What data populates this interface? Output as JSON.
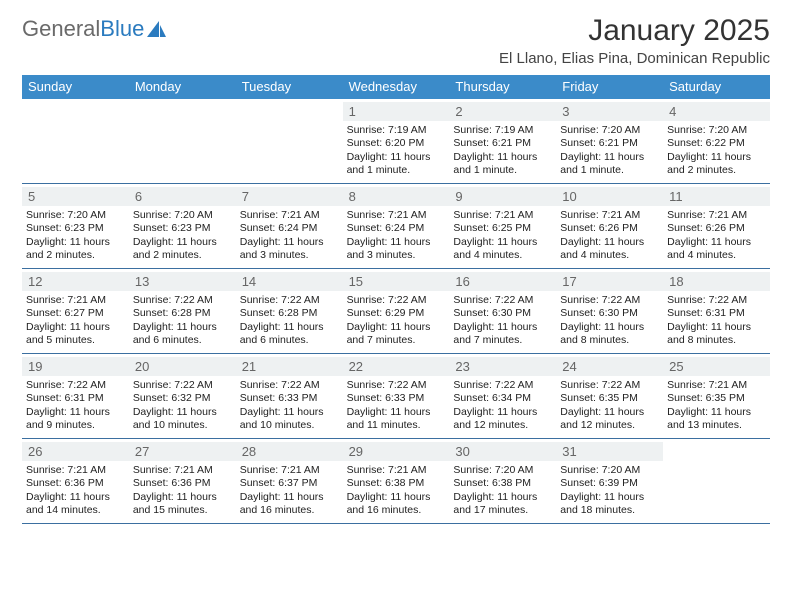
{
  "brand": {
    "part1": "General",
    "part2": "Blue"
  },
  "title": "January 2025",
  "location": "El Llano, Elias Pina, Dominican Republic",
  "colors": {
    "header_bg": "#3b8bc9",
    "header_text": "#ffffff",
    "daynum_bg": "#eef1f2",
    "daynum_text": "#666666",
    "rule": "#3b6fa0",
    "body_text": "#222222",
    "brand_gray": "#6a6a6a",
    "brand_blue": "#2b7bbf"
  },
  "dow": [
    "Sunday",
    "Monday",
    "Tuesday",
    "Wednesday",
    "Thursday",
    "Friday",
    "Saturday"
  ],
  "weeks": [
    [
      null,
      null,
      null,
      {
        "n": "1",
        "sunrise": "7:19 AM",
        "sunset": "6:20 PM",
        "daylight": "11 hours and 1 minute."
      },
      {
        "n": "2",
        "sunrise": "7:19 AM",
        "sunset": "6:21 PM",
        "daylight": "11 hours and 1 minute."
      },
      {
        "n": "3",
        "sunrise": "7:20 AM",
        "sunset": "6:21 PM",
        "daylight": "11 hours and 1 minute."
      },
      {
        "n": "4",
        "sunrise": "7:20 AM",
        "sunset": "6:22 PM",
        "daylight": "11 hours and 2 minutes."
      }
    ],
    [
      {
        "n": "5",
        "sunrise": "7:20 AM",
        "sunset": "6:23 PM",
        "daylight": "11 hours and 2 minutes."
      },
      {
        "n": "6",
        "sunrise": "7:20 AM",
        "sunset": "6:23 PM",
        "daylight": "11 hours and 2 minutes."
      },
      {
        "n": "7",
        "sunrise": "7:21 AM",
        "sunset": "6:24 PM",
        "daylight": "11 hours and 3 minutes."
      },
      {
        "n": "8",
        "sunrise": "7:21 AM",
        "sunset": "6:24 PM",
        "daylight": "11 hours and 3 minutes."
      },
      {
        "n": "9",
        "sunrise": "7:21 AM",
        "sunset": "6:25 PM",
        "daylight": "11 hours and 4 minutes."
      },
      {
        "n": "10",
        "sunrise": "7:21 AM",
        "sunset": "6:26 PM",
        "daylight": "11 hours and 4 minutes."
      },
      {
        "n": "11",
        "sunrise": "7:21 AM",
        "sunset": "6:26 PM",
        "daylight": "11 hours and 4 minutes."
      }
    ],
    [
      {
        "n": "12",
        "sunrise": "7:21 AM",
        "sunset": "6:27 PM",
        "daylight": "11 hours and 5 minutes."
      },
      {
        "n": "13",
        "sunrise": "7:22 AM",
        "sunset": "6:28 PM",
        "daylight": "11 hours and 6 minutes."
      },
      {
        "n": "14",
        "sunrise": "7:22 AM",
        "sunset": "6:28 PM",
        "daylight": "11 hours and 6 minutes."
      },
      {
        "n": "15",
        "sunrise": "7:22 AM",
        "sunset": "6:29 PM",
        "daylight": "11 hours and 7 minutes."
      },
      {
        "n": "16",
        "sunrise": "7:22 AM",
        "sunset": "6:30 PM",
        "daylight": "11 hours and 7 minutes."
      },
      {
        "n": "17",
        "sunrise": "7:22 AM",
        "sunset": "6:30 PM",
        "daylight": "11 hours and 8 minutes."
      },
      {
        "n": "18",
        "sunrise": "7:22 AM",
        "sunset": "6:31 PM",
        "daylight": "11 hours and 8 minutes."
      }
    ],
    [
      {
        "n": "19",
        "sunrise": "7:22 AM",
        "sunset": "6:31 PM",
        "daylight": "11 hours and 9 minutes."
      },
      {
        "n": "20",
        "sunrise": "7:22 AM",
        "sunset": "6:32 PM",
        "daylight": "11 hours and 10 minutes."
      },
      {
        "n": "21",
        "sunrise": "7:22 AM",
        "sunset": "6:33 PM",
        "daylight": "11 hours and 10 minutes."
      },
      {
        "n": "22",
        "sunrise": "7:22 AM",
        "sunset": "6:33 PM",
        "daylight": "11 hours and 11 minutes."
      },
      {
        "n": "23",
        "sunrise": "7:22 AM",
        "sunset": "6:34 PM",
        "daylight": "11 hours and 12 minutes."
      },
      {
        "n": "24",
        "sunrise": "7:22 AM",
        "sunset": "6:35 PM",
        "daylight": "11 hours and 12 minutes."
      },
      {
        "n": "25",
        "sunrise": "7:21 AM",
        "sunset": "6:35 PM",
        "daylight": "11 hours and 13 minutes."
      }
    ],
    [
      {
        "n": "26",
        "sunrise": "7:21 AM",
        "sunset": "6:36 PM",
        "daylight": "11 hours and 14 minutes."
      },
      {
        "n": "27",
        "sunrise": "7:21 AM",
        "sunset": "6:36 PM",
        "daylight": "11 hours and 15 minutes."
      },
      {
        "n": "28",
        "sunrise": "7:21 AM",
        "sunset": "6:37 PM",
        "daylight": "11 hours and 16 minutes."
      },
      {
        "n": "29",
        "sunrise": "7:21 AM",
        "sunset": "6:38 PM",
        "daylight": "11 hours and 16 minutes."
      },
      {
        "n": "30",
        "sunrise": "7:20 AM",
        "sunset": "6:38 PM",
        "daylight": "11 hours and 17 minutes."
      },
      {
        "n": "31",
        "sunrise": "7:20 AM",
        "sunset": "6:39 PM",
        "daylight": "11 hours and 18 minutes."
      },
      null
    ]
  ],
  "labels": {
    "sunrise": "Sunrise:",
    "sunset": "Sunset:",
    "daylight": "Daylight:"
  }
}
